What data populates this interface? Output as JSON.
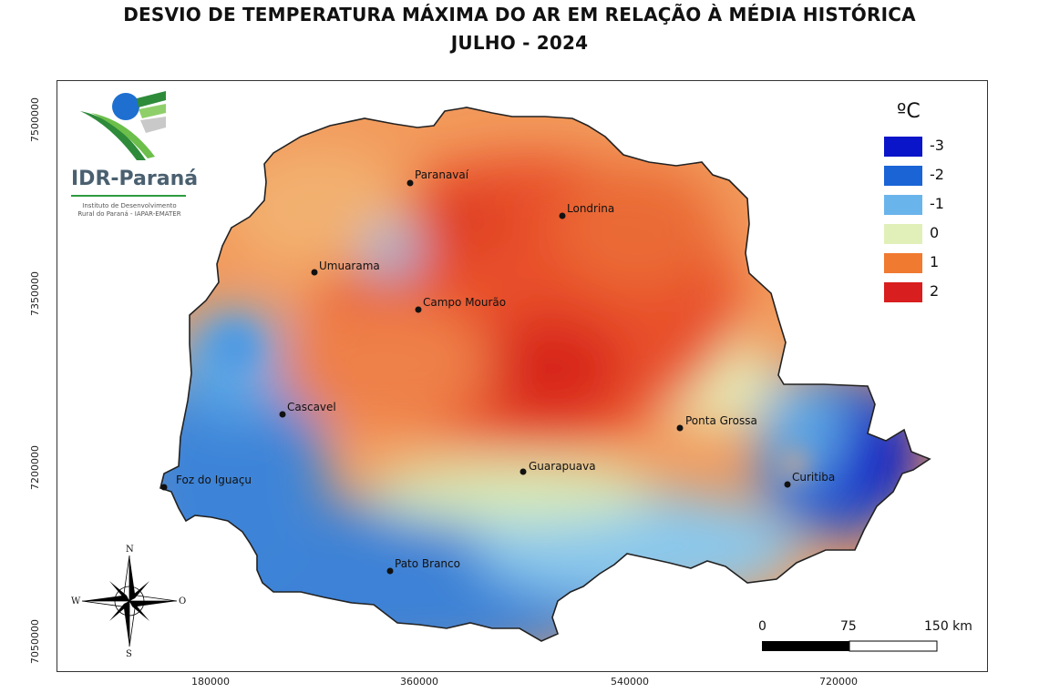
{
  "title": {
    "line1": "DESVIO DE TEMPERATURA MÁXIMA DO AR EM RELAÇÃO À MÉDIA HISTÓRICA",
    "line2": "JULHO - 2024"
  },
  "logo": {
    "name": "IDR-Paraná",
    "subtitle_line1": "Instituto de Desenvolvimento",
    "subtitle_line2": "Rural do Paraná - IAPAR-EMATER"
  },
  "axes": {
    "y_ticks": [
      "7500000",
      "7350000",
      "7200000",
      "7050000"
    ],
    "x_ticks": [
      "180000",
      "360000",
      "540000",
      "720000"
    ]
  },
  "cities": [
    {
      "name": "Paranavaí"
    },
    {
      "name": "Londrina"
    },
    {
      "name": "Umuarama"
    },
    {
      "name": "Campo Mourão"
    },
    {
      "name": "Cascavel"
    },
    {
      "name": "Ponta Grossa"
    },
    {
      "name": "Guarapuava"
    },
    {
      "name": "Foz do Iguaçu"
    },
    {
      "name": "Curitiba"
    },
    {
      "name": "Pato Branco"
    }
  ],
  "legend": {
    "unit": "ºC",
    "items": [
      {
        "label": "-3",
        "color": "#0a14c8"
      },
      {
        "label": "-2",
        "color": "#1a64d6"
      },
      {
        "label": "-1",
        "color": "#6ab4ec"
      },
      {
        "label": "0",
        "color": "#e0f0b8"
      },
      {
        "label": "1",
        "color": "#f07a30"
      },
      {
        "label": "2",
        "color": "#d81e1e"
      }
    ]
  },
  "scale_bar": {
    "labels": [
      "0",
      "75",
      "150 km"
    ]
  },
  "compass": {
    "north": "N",
    "south": "S",
    "east": "O",
    "west": "W"
  }
}
